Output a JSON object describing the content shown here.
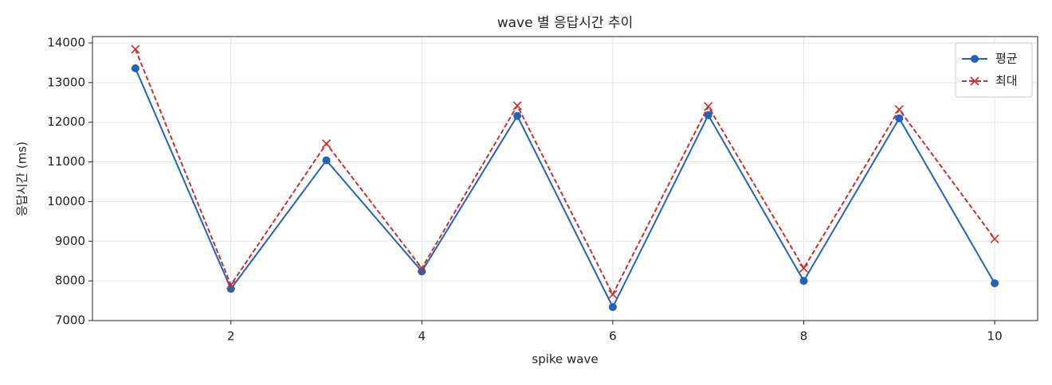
{
  "chart_data": {
    "type": "line",
    "title": "wave 별 응답시간 추이",
    "x_label": "spike wave",
    "y_label": "응답시간 (ms)",
    "x": [
      1,
      2,
      3,
      4,
      5,
      6,
      7,
      8,
      9,
      10
    ],
    "series": [
      {
        "name": "평균",
        "color": "#1f63bd",
        "marker": "circle",
        "dash": false,
        "values": [
          13360,
          7800,
          11040,
          8240,
          12160,
          7340,
          12180,
          8000,
          12100,
          7940
        ]
      },
      {
        "name": "최대",
        "color": "#c9302c",
        "marker": "x",
        "dash": true,
        "values": [
          13840,
          7900,
          11460,
          8320,
          12420,
          7660,
          12400,
          8320,
          12320,
          9060
        ]
      }
    ],
    "xlim": [
      0.55,
      10.45
    ],
    "ylim": [
      7000,
      14160
    ],
    "xticks": [
      2,
      4,
      6,
      8,
      10
    ],
    "yticks": [
      7000,
      8000,
      9000,
      10000,
      11000,
      12000,
      13000,
      14000
    ],
    "grid": true,
    "legend": "upper right"
  }
}
